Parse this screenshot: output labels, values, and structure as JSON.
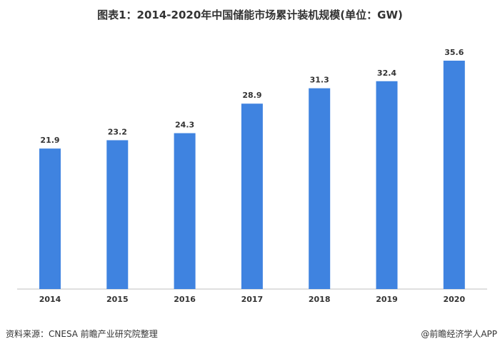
{
  "chart_data": {
    "type": "bar",
    "title": "图表1：2014-2020年中国储能市场累计装机规模(单位：GW)",
    "categories": [
      "2014",
      "2015",
      "2016",
      "2017",
      "2018",
      "2019",
      "2020"
    ],
    "values": [
      21.9,
      23.2,
      24.3,
      28.9,
      31.3,
      32.4,
      35.6
    ],
    "xlabel": "",
    "ylabel": "",
    "ylim": [
      0,
      35.6
    ],
    "grid": false,
    "bar_color": "#3f83e0"
  },
  "footer": {
    "source": "资料来源：CNESA 前瞻产业研究院整理",
    "credit": "@前瞻经济学人APP"
  }
}
